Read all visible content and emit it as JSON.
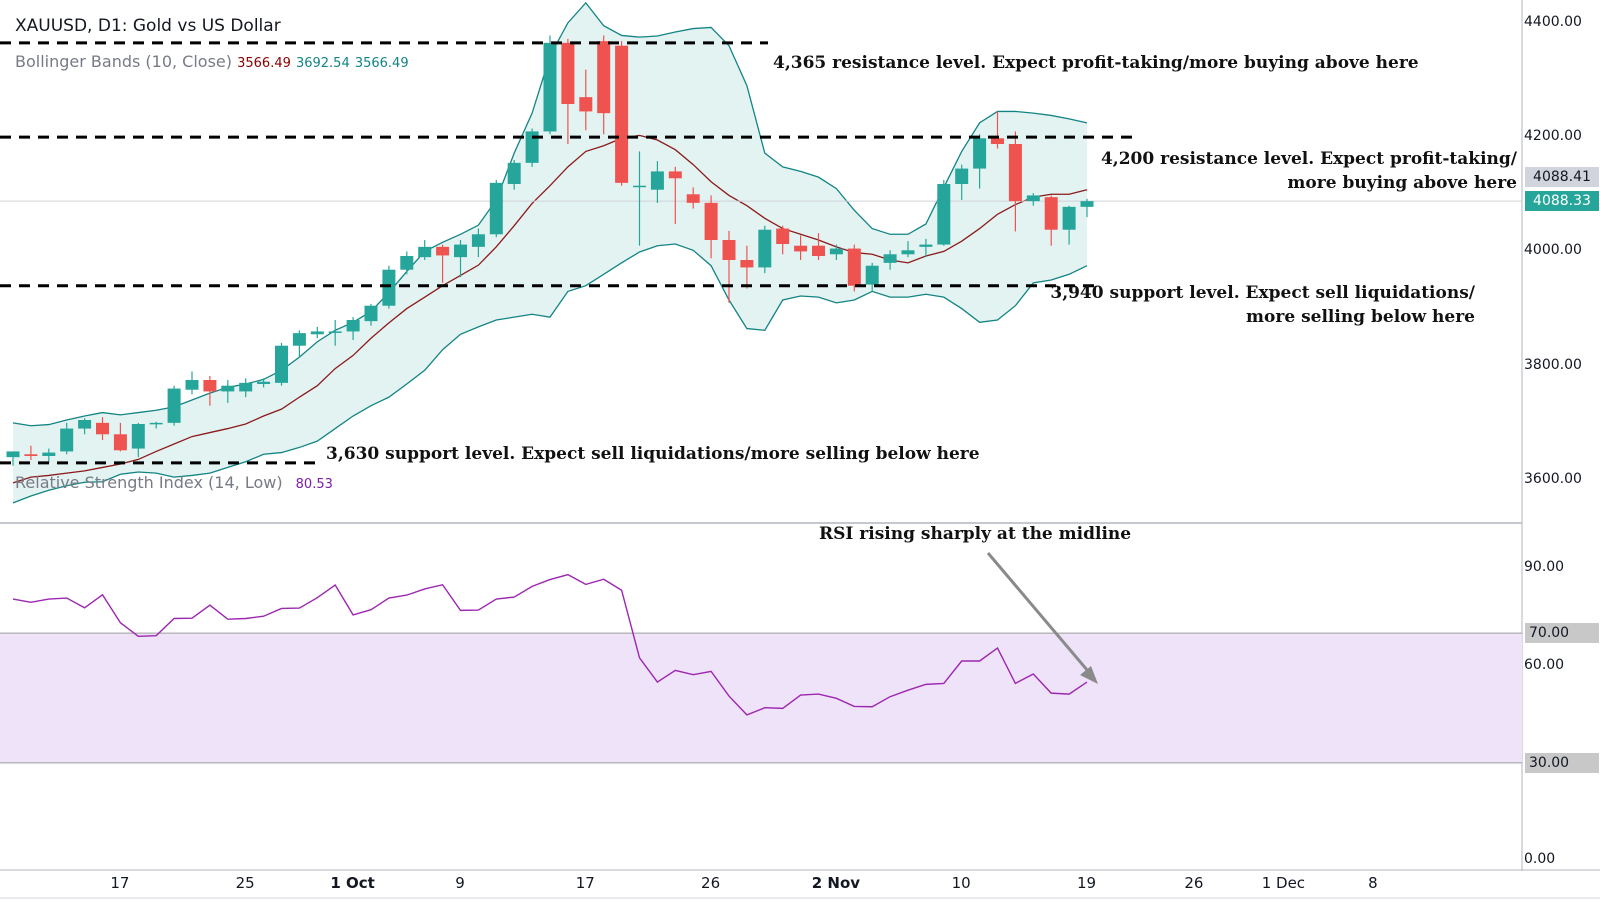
{
  "header": {
    "title": "XAUUSD, D1: Gold vs US Dollar",
    "bb_label": "Bollinger Bands (10, Close)",
    "bb_values": [
      "3566.49",
      "3692.54",
      "3566.49"
    ],
    "rsi_label": "Relative Strength Index (14, Low)",
    "rsi_value": "80.53"
  },
  "price_tags": {
    "last_close": "4088.41",
    "current": "4088.33"
  },
  "annotations": {
    "res_4365": "4,365 resistance level. Expect profit-taking/more buying above here",
    "res_4200_l1": "4,200 resistance level. Expect profit-taking/",
    "res_4200_l2": "more buying above here",
    "sup_3940_l1": "3,940 support level. Expect sell liquidations/",
    "sup_3940_l2": "more selling below here",
    "sup_3630": "3,630 support level. Expect sell liquidations/more selling below here",
    "rsi_note": "RSI rising sharply at the midline"
  },
  "colors": {
    "bull": "#26a69a",
    "bear": "#ef5350",
    "band": "#138484",
    "band_fill": "#e3f3f2",
    "basis": "#8b1a1a",
    "rsi": "#9c27b0",
    "rsi_band": "#efe3f9"
  },
  "chart_data": {
    "type": "candlestick",
    "title": "XAUUSD, D1: Gold vs US Dollar",
    "price_axis": {
      "ticks": [
        "4400.00",
        "4200.00",
        "4000.00",
        "3800.00",
        "3600.00"
      ],
      "range": [
        3530,
        4440
      ]
    },
    "rsi_axis": {
      "ticks": [
        "90.00",
        "70.00",
        "60.00",
        "30.00",
        "0.00"
      ],
      "range": [
        -3,
        103
      ],
      "band": [
        30,
        70
      ]
    },
    "x_axis": {
      "ticks": [
        "17",
        "25",
        "1 Oct",
        "9",
        "17",
        "26",
        "2 Nov",
        "10",
        "19",
        "26",
        "1 Dec",
        "8"
      ],
      "bold": [
        "1 Oct",
        "2 Nov"
      ]
    },
    "levels": [
      4365,
      4200,
      3940,
      3630
    ],
    "candles": [
      {
        "o": 3640,
        "h": 3650,
        "l": 3625,
        "c": 3650
      },
      {
        "o": 3645,
        "h": 3660,
        "l": 3635,
        "c": 3642
      },
      {
        "o": 3642,
        "h": 3655,
        "l": 3630,
        "c": 3648
      },
      {
        "o": 3650,
        "h": 3700,
        "l": 3645,
        "c": 3690
      },
      {
        "o": 3690,
        "h": 3708,
        "l": 3680,
        "c": 3705
      },
      {
        "o": 3700,
        "h": 3710,
        "l": 3670,
        "c": 3680
      },
      {
        "o": 3680,
        "h": 3700,
        "l": 3650,
        "c": 3652
      },
      {
        "o": 3655,
        "h": 3700,
        "l": 3640,
        "c": 3698
      },
      {
        "o": 3698,
        "h": 3702,
        "l": 3690,
        "c": 3700
      },
      {
        "o": 3700,
        "h": 3765,
        "l": 3695,
        "c": 3760
      },
      {
        "o": 3758,
        "h": 3790,
        "l": 3750,
        "c": 3775
      },
      {
        "o": 3775,
        "h": 3782,
        "l": 3730,
        "c": 3755
      },
      {
        "o": 3755,
        "h": 3775,
        "l": 3735,
        "c": 3765
      },
      {
        "o": 3755,
        "h": 3778,
        "l": 3745,
        "c": 3770
      },
      {
        "o": 3768,
        "h": 3778,
        "l": 3762,
        "c": 3772
      },
      {
        "o": 3770,
        "h": 3840,
        "l": 3765,
        "c": 3835
      },
      {
        "o": 3835,
        "h": 3862,
        "l": 3815,
        "c": 3857
      },
      {
        "o": 3855,
        "h": 3868,
        "l": 3848,
        "c": 3860
      },
      {
        "o": 3860,
        "h": 3880,
        "l": 3835,
        "c": 3860
      },
      {
        "o": 3860,
        "h": 3885,
        "l": 3845,
        "c": 3880
      },
      {
        "o": 3878,
        "h": 3908,
        "l": 3870,
        "c": 3905
      },
      {
        "o": 3905,
        "h": 3975,
        "l": 3900,
        "c": 3968
      },
      {
        "o": 3968,
        "h": 4000,
        "l": 3960,
        "c": 3992
      },
      {
        "o": 3990,
        "h": 4020,
        "l": 3985,
        "c": 4008
      },
      {
        "o": 4008,
        "h": 4012,
        "l": 3945,
        "c": 3993
      },
      {
        "o": 3990,
        "h": 4020,
        "l": 3955,
        "c": 4012
      },
      {
        "o": 4008,
        "h": 4040,
        "l": 3990,
        "c": 4030
      },
      {
        "o": 4030,
        "h": 4125,
        "l": 4025,
        "c": 4120
      },
      {
        "o": 4118,
        "h": 4160,
        "l": 4108,
        "c": 4155
      },
      {
        "o": 4155,
        "h": 4215,
        "l": 4148,
        "c": 4210
      },
      {
        "o": 4210,
        "h": 4378,
        "l": 4205,
        "c": 4365
      },
      {
        "o": 4365,
        "h": 4372,
        "l": 4188,
        "c": 4258
      },
      {
        "o": 4270,
        "h": 4318,
        "l": 4212,
        "c": 4245
      },
      {
        "o": 4368,
        "h": 4378,
        "l": 4205,
        "c": 4242
      },
      {
        "o": 4360,
        "h": 4368,
        "l": 4115,
        "c": 4120
      },
      {
        "o": 4115,
        "h": 4175,
        "l": 4010,
        "c": 4115
      },
      {
        "o": 4108,
        "h": 4158,
        "l": 4085,
        "c": 4140
      },
      {
        "o": 4140,
        "h": 4148,
        "l": 4048,
        "c": 4128
      },
      {
        "o": 4100,
        "h": 4112,
        "l": 4075,
        "c": 4085
      },
      {
        "o": 4085,
        "h": 4098,
        "l": 3988,
        "c": 4020
      },
      {
        "o": 4020,
        "h": 4036,
        "l": 3910,
        "c": 3985
      },
      {
        "o": 3985,
        "h": 4010,
        "l": 3935,
        "c": 3972
      },
      {
        "o": 3972,
        "h": 4045,
        "l": 3962,
        "c": 4038
      },
      {
        "o": 4040,
        "h": 4045,
        "l": 3995,
        "c": 4013
      },
      {
        "o": 4010,
        "h": 4028,
        "l": 3985,
        "c": 4000
      },
      {
        "o": 4010,
        "h": 4032,
        "l": 3985,
        "c": 3992
      },
      {
        "o": 3995,
        "h": 4012,
        "l": 3985,
        "c": 4005
      },
      {
        "o": 4005,
        "h": 4012,
        "l": 3930,
        "c": 3940
      },
      {
        "o": 3942,
        "h": 3980,
        "l": 3930,
        "c": 3975
      },
      {
        "o": 3980,
        "h": 4002,
        "l": 3968,
        "c": 3995
      },
      {
        "o": 3995,
        "h": 4018,
        "l": 3990,
        "c": 4002
      },
      {
        "o": 4008,
        "h": 4022,
        "l": 3990,
        "c": 4012
      },
      {
        "o": 4012,
        "h": 4125,
        "l": 4010,
        "c": 4118
      },
      {
        "o": 4118,
        "h": 4152,
        "l": 4090,
        "c": 4145
      },
      {
        "o": 4145,
        "h": 4205,
        "l": 4110,
        "c": 4198
      },
      {
        "o": 4198,
        "h": 4245,
        "l": 4180,
        "c": 4188
      },
      {
        "o": 4188,
        "h": 4210,
        "l": 4035,
        "c": 4088
      },
      {
        "o": 4088,
        "h": 4102,
        "l": 4080,
        "c": 4098
      },
      {
        "o": 4095,
        "h": 4098,
        "l": 4010,
        "c": 4038
      },
      {
        "o": 4038,
        "h": 4080,
        "l": 4012,
        "c": 4078
      },
      {
        "o": 4078,
        "h": 4092,
        "l": 4060,
        "c": 4088
      }
    ],
    "bb_upper": [
      3700,
      3695,
      3697,
      3705,
      3712,
      3718,
      3714,
      3718,
      3722,
      3728,
      3740,
      3752,
      3762,
      3768,
      3776,
      3792,
      3815,
      3842,
      3862,
      3876,
      3895,
      3928,
      3965,
      4000,
      4016,
      4030,
      4046,
      4090,
      4172,
      4242,
      4342,
      4400,
      4435,
      4395,
      4378,
      4375,
      4377,
      4384,
      4390,
      4392,
      4360,
      4290,
      4172,
      4148,
      4140,
      4130,
      4110,
      4072,
      4040,
      4030,
      4030,
      4048,
      4112,
      4175,
      4225,
      4245,
      4245,
      4242,
      4238,
      4232,
      4225
    ],
    "bb_lower": [
      3560,
      3572,
      3582,
      3590,
      3596,
      3597,
      3610,
      3614,
      3612,
      3605,
      3608,
      3612,
      3622,
      3632,
      3645,
      3648,
      3657,
      3668,
      3690,
      3712,
      3730,
      3745,
      3768,
      3792,
      3828,
      3855,
      3868,
      3880,
      3885,
      3890,
      3885,
      3930,
      3940,
      3960,
      3980,
      3999,
      4010,
      4013,
      4002,
      3975,
      3915,
      3865,
      3862,
      3915,
      3922,
      3920,
      3910,
      3915,
      3930,
      3920,
      3920,
      3925,
      3920,
      3900,
      3876,
      3880,
      3905,
      3945,
      3950,
      3960,
      3975
    ],
    "bb_basis": [
      3595,
      3605,
      3608,
      3612,
      3616,
      3622,
      3628,
      3636,
      3650,
      3663,
      3676,
      3683,
      3690,
      3698,
      3712,
      3724,
      3745,
      3765,
      3795,
      3818,
      3848,
      3875,
      3900,
      3920,
      3940,
      3958,
      3976,
      4008,
      4045,
      4084,
      4115,
      4148,
      4175,
      4185,
      4198,
      4203,
      4195,
      4178,
      4152,
      4122,
      4098,
      4080,
      4058,
      4040,
      4030,
      4020,
      4008,
      3998,
      3995,
      3985,
      3980,
      3992,
      4000,
      4018,
      4040,
      4065,
      4082,
      4095,
      4100,
      4100,
      4108
    ],
    "rsi": [
      80.5,
      79.5,
      80.5,
      80.8,
      77.8,
      81.8,
      73.2,
      69,
      69.2,
      74.5,
      74.6,
      78.6,
      74.3,
      74.5,
      75.2,
      77.6,
      77.7,
      80.9,
      84.8,
      75.6,
      77.2,
      80.8,
      81.7,
      83.6,
      84.9,
      77,
      77.1,
      80.5,
      81.1,
      84.4,
      86.5,
      88,
      85,
      86.6,
      83.2,
      62.4,
      54.9,
      58.5,
      57.2,
      58.2,
      50.6,
      44.8,
      47,
      46.8,
      50.9,
      51.2,
      49.9,
      47.4,
      47.3,
      50.4,
      52.4,
      54.2,
      54.5,
      61.4,
      61.4,
      65.4,
      54.5,
      57.4,
      51.5,
      51.2,
      54.9
    ]
  }
}
